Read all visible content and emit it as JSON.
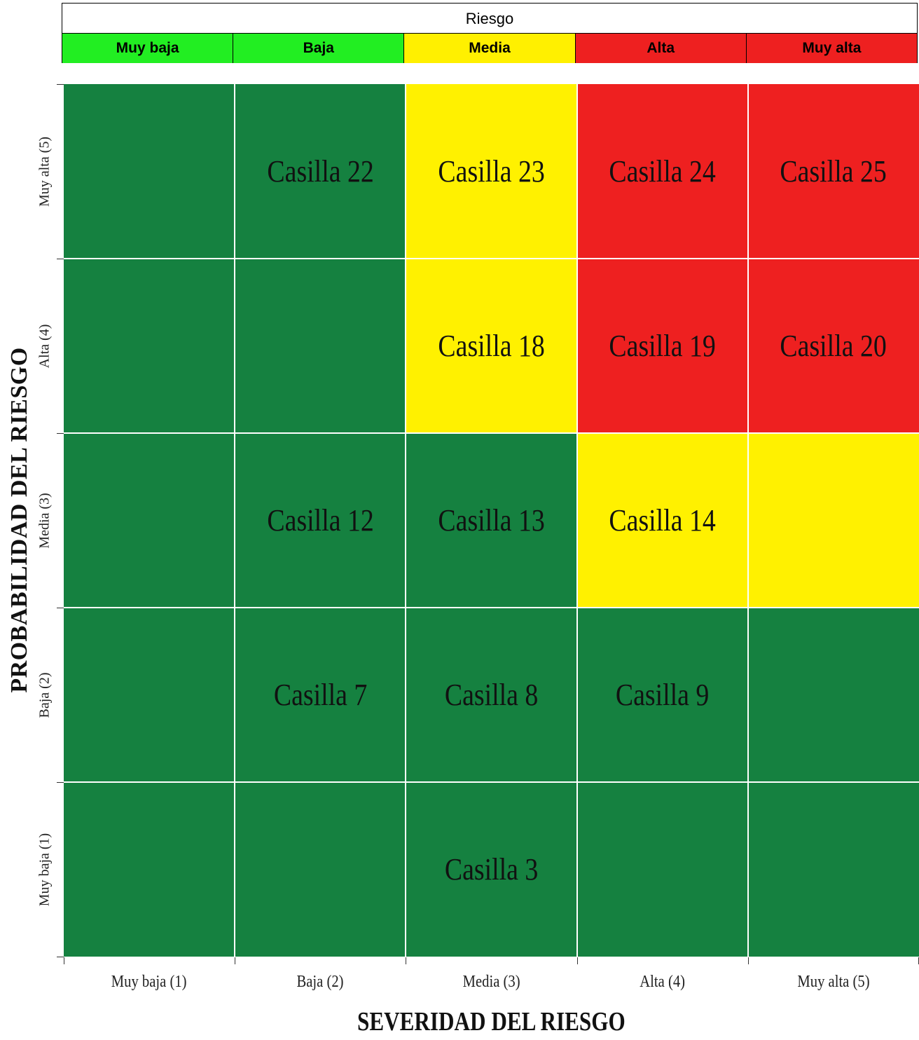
{
  "legend": {
    "title": "Riesgo",
    "levels": [
      {
        "label": "Muy baja",
        "color": "#22ee22"
      },
      {
        "label": "Baja",
        "color": "#22ee22"
      },
      {
        "label": "Media",
        "color": "#fff000"
      },
      {
        "label": "Alta",
        "color": "#ee2020"
      },
      {
        "label": "Muy alta",
        "color": "#ee2020"
      }
    ]
  },
  "chart_data": {
    "type": "heatmap",
    "title": "",
    "xlabel": "SEVERIDAD DEL RIESGO",
    "ylabel": "PROBABILIDAD DEL RIESGO",
    "x_categories": [
      "Muy baja (1)",
      "Baja (2)",
      "Media (3)",
      "Alta (4)",
      "Muy alta (5)"
    ],
    "y_categories": [
      "Muy baja (1)",
      "Baja (2)",
      "Media (3)",
      "Alta (4)",
      "Muy alta (5)"
    ],
    "level_colors": {
      "green": "#158140",
      "yellow": "#fff100",
      "red": "#ee2020"
    },
    "cells": [
      {
        "x": 1,
        "y": 5,
        "level": "green",
        "label": ""
      },
      {
        "x": 2,
        "y": 5,
        "level": "green",
        "label": "Casilla 22"
      },
      {
        "x": 3,
        "y": 5,
        "level": "yellow",
        "label": "Casilla 23"
      },
      {
        "x": 4,
        "y": 5,
        "level": "red",
        "label": "Casilla 24"
      },
      {
        "x": 5,
        "y": 5,
        "level": "red",
        "label": "Casilla 25"
      },
      {
        "x": 1,
        "y": 4,
        "level": "green",
        "label": ""
      },
      {
        "x": 2,
        "y": 4,
        "level": "green",
        "label": ""
      },
      {
        "x": 3,
        "y": 4,
        "level": "yellow",
        "label": "Casilla 18"
      },
      {
        "x": 4,
        "y": 4,
        "level": "red",
        "label": "Casilla 19"
      },
      {
        "x": 5,
        "y": 4,
        "level": "red",
        "label": "Casilla 20"
      },
      {
        "x": 1,
        "y": 3,
        "level": "green",
        "label": ""
      },
      {
        "x": 2,
        "y": 3,
        "level": "green",
        "label": "Casilla 12"
      },
      {
        "x": 3,
        "y": 3,
        "level": "green",
        "label": "Casilla 13"
      },
      {
        "x": 4,
        "y": 3,
        "level": "yellow",
        "label": "Casilla 14"
      },
      {
        "x": 5,
        "y": 3,
        "level": "yellow",
        "label": ""
      },
      {
        "x": 1,
        "y": 2,
        "level": "green",
        "label": ""
      },
      {
        "x": 2,
        "y": 2,
        "level": "green",
        "label": "Casilla 7"
      },
      {
        "x": 3,
        "y": 2,
        "level": "green",
        "label": "Casilla 8"
      },
      {
        "x": 4,
        "y": 2,
        "level": "green",
        "label": "Casilla 9"
      },
      {
        "x": 5,
        "y": 2,
        "level": "green",
        "label": ""
      },
      {
        "x": 1,
        "y": 1,
        "level": "green",
        "label": ""
      },
      {
        "x": 2,
        "y": 1,
        "level": "green",
        "label": ""
      },
      {
        "x": 3,
        "y": 1,
        "level": "green",
        "label": "Casilla 3"
      },
      {
        "x": 4,
        "y": 1,
        "level": "green",
        "label": ""
      },
      {
        "x": 5,
        "y": 1,
        "level": "green",
        "label": ""
      }
    ]
  }
}
